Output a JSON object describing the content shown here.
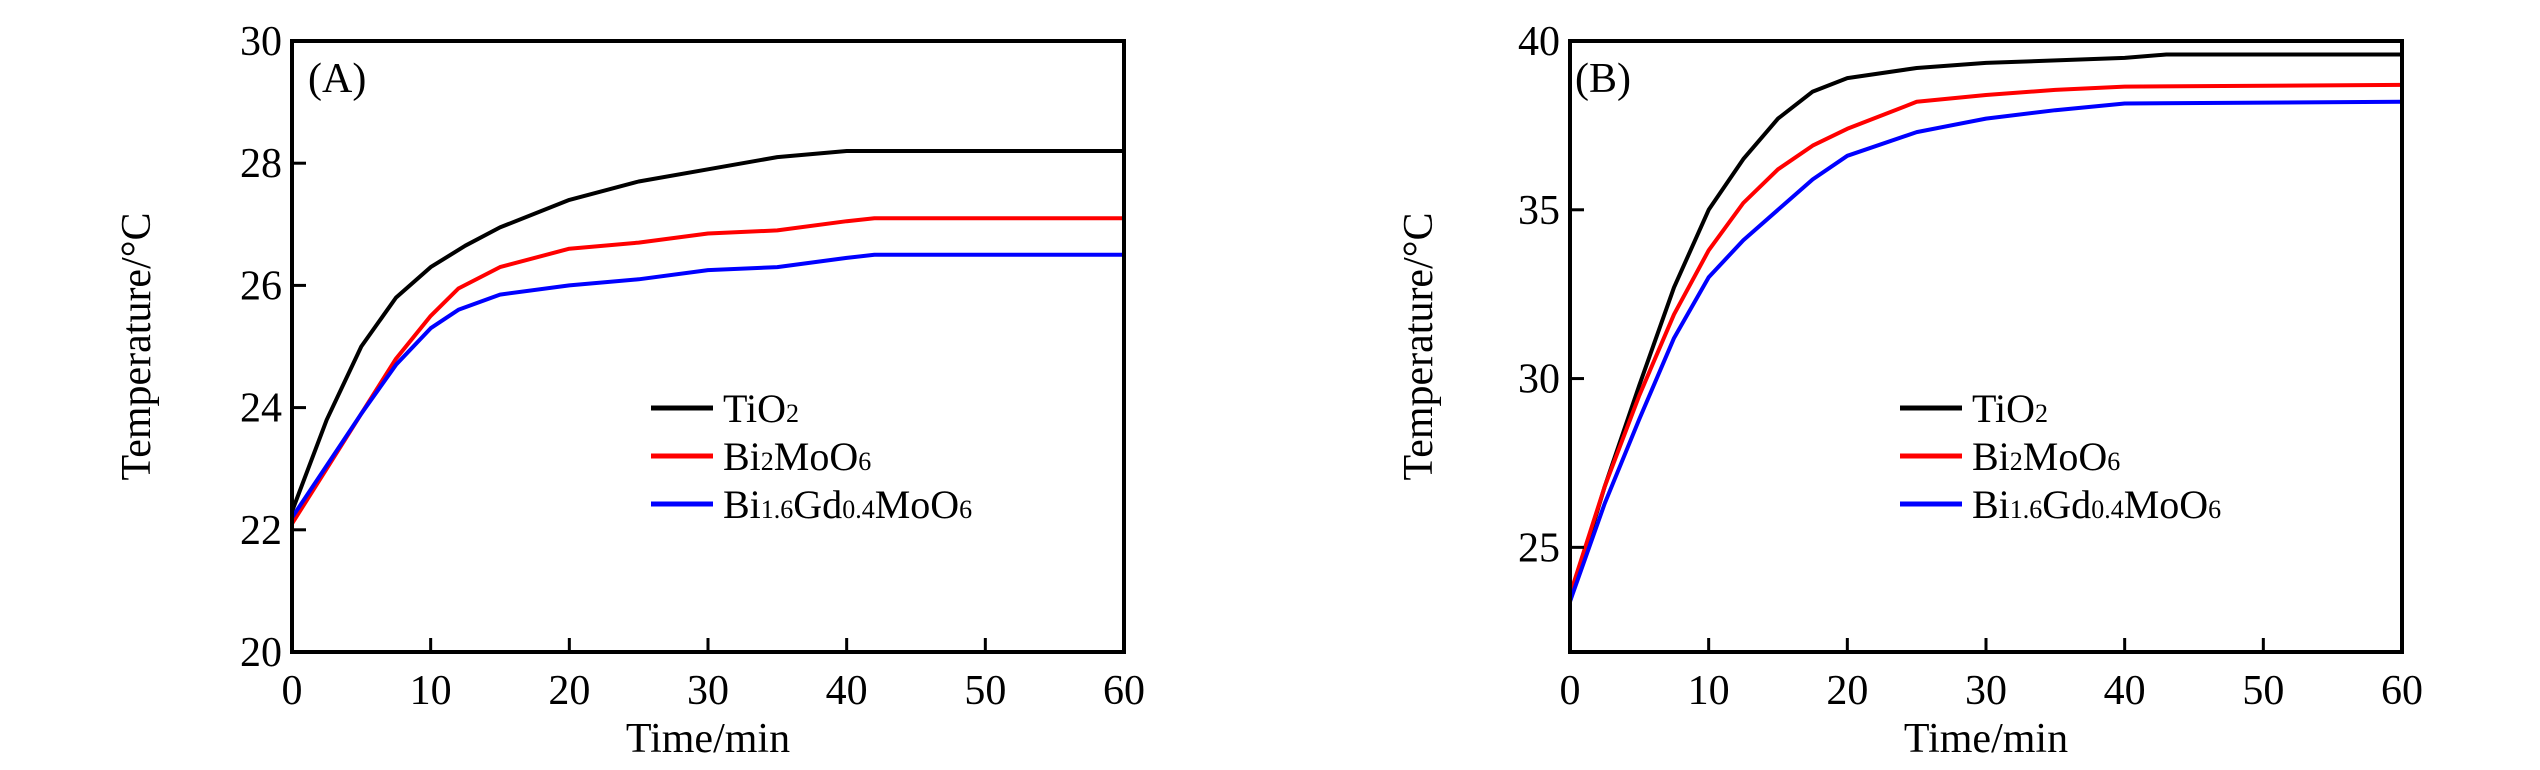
{
  "colors": {
    "TiO2": "#000000",
    "Bi2MoO6": "#ff0000",
    "Bi1.6Gd0.4MoO6": "#0000ff"
  },
  "chart_data": [
    {
      "type": "line",
      "panel_label": "(A)",
      "xlabel": "Time/min",
      "ylabel": "Temperature/°C",
      "xlim": [
        0,
        60
      ],
      "ylim": [
        20,
        30
      ],
      "xticks": [
        0,
        10,
        20,
        30,
        40,
        50,
        60
      ],
      "yticks": [
        20,
        22,
        24,
        26,
        28,
        30
      ],
      "grid": false,
      "legend_position": "center-right",
      "series": [
        {
          "name": "TiO2",
          "label_parts": [
            [
              "Ti",
              ""
            ],
            [
              "O",
              ""
            ],
            [
              "2",
              "sub"
            ]
          ],
          "color": "#000000",
          "x": [
            0,
            2.5,
            5,
            7.5,
            10,
            12.5,
            15,
            20,
            25,
            30,
            35,
            40,
            45,
            60
          ],
          "y": [
            22.3,
            23.8,
            25.0,
            25.8,
            26.3,
            26.65,
            26.95,
            27.4,
            27.7,
            27.9,
            28.1,
            28.2,
            28.2,
            28.2
          ]
        },
        {
          "name": "Bi2MoO6",
          "label_parts": [
            [
              "Bi",
              ""
            ],
            [
              "2",
              "sub"
            ],
            [
              "MoO",
              ""
            ],
            [
              "6",
              "sub"
            ]
          ],
          "color": "#ff0000",
          "x": [
            0,
            2.5,
            5,
            7.5,
            10,
            12,
            15,
            20,
            25,
            30,
            35,
            40,
            42,
            60
          ],
          "y": [
            22.1,
            23.0,
            23.9,
            24.8,
            25.5,
            25.95,
            26.3,
            26.6,
            26.7,
            26.85,
            26.9,
            27.05,
            27.1,
            27.1
          ]
        },
        {
          "name": "Bi1.6Gd0.4MoO6",
          "label_parts": [
            [
              "Bi",
              ""
            ],
            [
              "1.6",
              "sub"
            ],
            [
              "Gd",
              ""
            ],
            [
              "0.4",
              "sub"
            ],
            [
              "MoO",
              ""
            ],
            [
              "6",
              "sub"
            ]
          ],
          "color": "#0000ff",
          "x": [
            0,
            2.5,
            5,
            7.5,
            10,
            12,
            15,
            20,
            25,
            30,
            35,
            40,
            42,
            60
          ],
          "y": [
            22.2,
            23.05,
            23.9,
            24.7,
            25.3,
            25.6,
            25.85,
            26.0,
            26.1,
            26.25,
            26.3,
            26.45,
            26.5,
            26.5
          ]
        }
      ]
    },
    {
      "type": "line",
      "panel_label": "(B)",
      "xlabel": "Time/min",
      "ylabel": "Temperature/°C",
      "xlim": [
        0,
        60
      ],
      "ylim": [
        21.9,
        40
      ],
      "xticks": [
        0,
        10,
        20,
        30,
        40,
        50,
        60
      ],
      "yticks": [
        25,
        30,
        35,
        40
      ],
      "grid": false,
      "legend_position": "center-right",
      "series": [
        {
          "name": "TiO2",
          "label_parts": [
            [
              "Ti",
              ""
            ],
            [
              "O",
              ""
            ],
            [
              "2",
              "sub"
            ]
          ],
          "color": "#000000",
          "x": [
            0,
            2.5,
            5,
            7.5,
            10,
            12.5,
            15,
            17.5,
            20,
            25,
            30,
            40,
            43,
            60
          ],
          "y": [
            23.4,
            26.8,
            29.8,
            32.7,
            35.0,
            36.5,
            37.7,
            38.5,
            38.9,
            39.2,
            39.35,
            39.5,
            39.6,
            39.6
          ]
        },
        {
          "name": "Bi2MoO6",
          "label_parts": [
            [
              "Bi",
              ""
            ],
            [
              "2",
              "sub"
            ],
            [
              "MoO",
              ""
            ],
            [
              "6",
              "sub"
            ]
          ],
          "color": "#ff0000",
          "x": [
            0,
            2.5,
            5,
            7.5,
            10,
            12.5,
            15,
            17.5,
            20,
            25,
            30,
            35,
            40,
            60
          ],
          "y": [
            23.6,
            26.8,
            29.5,
            31.9,
            33.8,
            35.2,
            36.2,
            36.9,
            37.4,
            38.2,
            38.4,
            38.55,
            38.65,
            38.7
          ]
        },
        {
          "name": "Bi1.6Gd0.4MoO6",
          "label_parts": [
            [
              "Bi",
              ""
            ],
            [
              "1.6",
              "sub"
            ],
            [
              "Gd",
              ""
            ],
            [
              "0.4",
              "sub"
            ],
            [
              "MoO",
              ""
            ],
            [
              "6",
              "sub"
            ]
          ],
          "color": "#0000ff",
          "x": [
            0,
            2.5,
            5,
            7.5,
            10,
            12.5,
            15,
            17.5,
            20,
            25,
            30,
            35,
            40,
            60
          ],
          "y": [
            23.4,
            26.3,
            28.8,
            31.2,
            33.0,
            34.1,
            35.0,
            35.9,
            36.6,
            37.3,
            37.7,
            37.95,
            38.15,
            38.2
          ]
        }
      ]
    }
  ]
}
